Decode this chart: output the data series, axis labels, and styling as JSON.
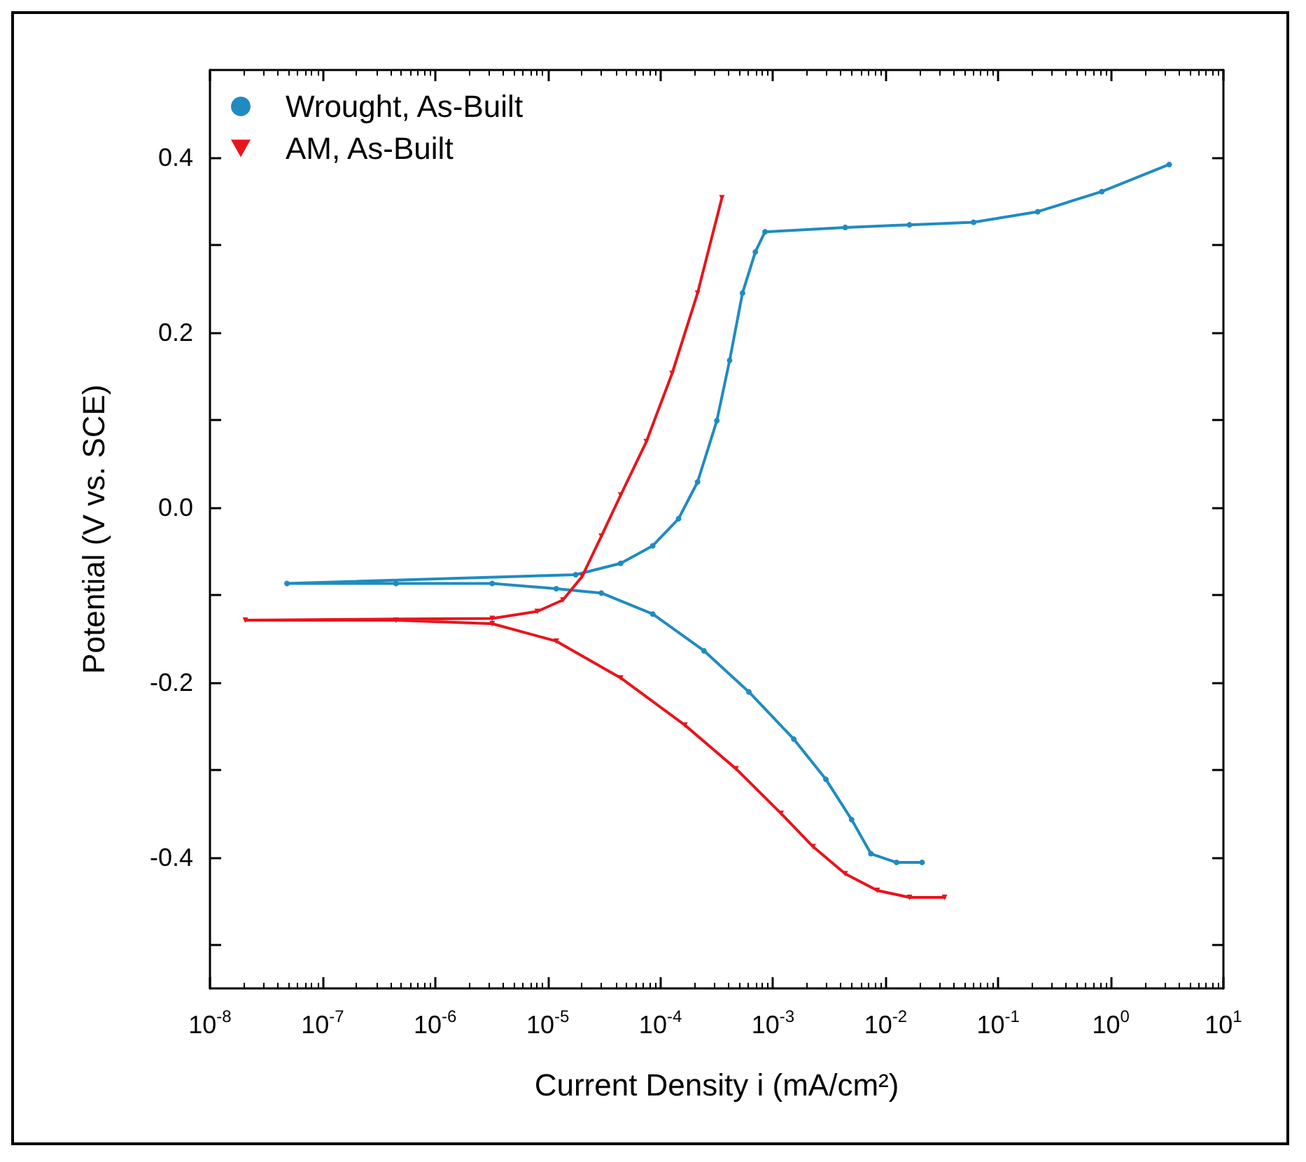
{
  "chart_data": {
    "type": "line",
    "xlabel": "Current Density i (mA/cm²)",
    "ylabel": "Potential (V vs. SCE)",
    "xlim": [
      1e-08,
      10
    ],
    "ylim": [
      -0.55,
      0.5
    ],
    "log": "x",
    "legend": "top left",
    "grid": false,
    "xticks": [
      {
        "value": 1e-08,
        "label": "10$^{-8}$"
      },
      {
        "value": 1e-07,
        "label": "10$^{-7}$"
      },
      {
        "value": 1e-06,
        "label": "10$^{-6}$"
      },
      {
        "value": 1e-05,
        "label": "10$^{-5}$"
      },
      {
        "value": 0.0001,
        "label": "10$^{-4}$"
      },
      {
        "value": 0.001,
        "label": "10$^{-3}$"
      },
      {
        "value": 0.01,
        "label": "10$^{-2}$"
      },
      {
        "value": 0.1,
        "label": "10$^{-1}$"
      },
      {
        "value": 1,
        "label": "10$^{0}$"
      },
      {
        "value": 10,
        "label": "10$^{1}$"
      }
    ],
    "yticks": [
      {
        "value": -0.5,
        "label": null
      },
      -0.4,
      {
        "value": -0.3,
        "label": null
      },
      -0.2,
      {
        "value": -0.1,
        "label": null
      },
      {
        "value": 0,
        "label": "0.0"
      },
      {
        "value": 0.1,
        "label": null
      },
      0.2,
      {
        "value": 0.3,
        "label": null
      },
      0.4
    ],
    "series": [
      {
        "name": "Wrought, As-Built",
        "color": "#1f8bc1",
        "marker": "circle",
        "x": [
          0.0211,
          0.0125,
          0.0074,
          0.00499,
          0.00295,
          0.00153,
          0.000611,
          0.000244,
          8.55e-05,
          2.99e-05,
          1.19e-05,
          3.21e-06,
          4.49e-07,
          4.83e-08,
          1.77e-05,
          4.44e-05,
          8.55e-05,
          0.000145,
          0.000214,
          0.000317,
          0.000412,
          0.000536,
          0.000697,
          0.000849,
          0.00438,
          0.0163,
          0.0604,
          0.224,
          0.832,
          3.3
        ],
        "values": [
          -0.406,
          -0.406,
          -0.396,
          -0.357,
          -0.311,
          -0.265,
          -0.211,
          -0.164,
          -0.122,
          -0.098,
          -0.093,
          -0.087,
          -0.087,
          -0.087,
          -0.077,
          -0.064,
          -0.044,
          -0.013,
          0.029,
          0.099,
          0.168,
          0.245,
          0.292,
          0.315,
          0.32,
          0.323,
          0.326,
          0.338,
          0.361,
          0.392
        ]
      },
      {
        "name": "AM, As-Built",
        "color": "#e8141c",
        "marker": "triangle",
        "x": [
          0.0334,
          0.0163,
          0.00843,
          0.00438,
          0.00227,
          0.00118,
          0.00047,
          0.000165,
          4.44e-05,
          1.19e-05,
          3.21e-06,
          4.49e-07,
          2.06e-08,
          3.21e-06,
          8.05e-06,
          1.36e-05,
          2.02e-05,
          2.99e-05,
          4.44e-05,
          7.5e-05,
          0.000127,
          0.000214,
          0.000352
        ],
        "values": [
          -0.446,
          -0.446,
          -0.438,
          -0.419,
          -0.388,
          -0.35,
          -0.299,
          -0.249,
          -0.195,
          -0.153,
          -0.133,
          -0.129,
          -0.129,
          -0.127,
          -0.119,
          -0.106,
          -0.079,
          -0.033,
          0.014,
          0.075,
          0.153,
          0.245,
          0.354
        ]
      }
    ]
  }
}
